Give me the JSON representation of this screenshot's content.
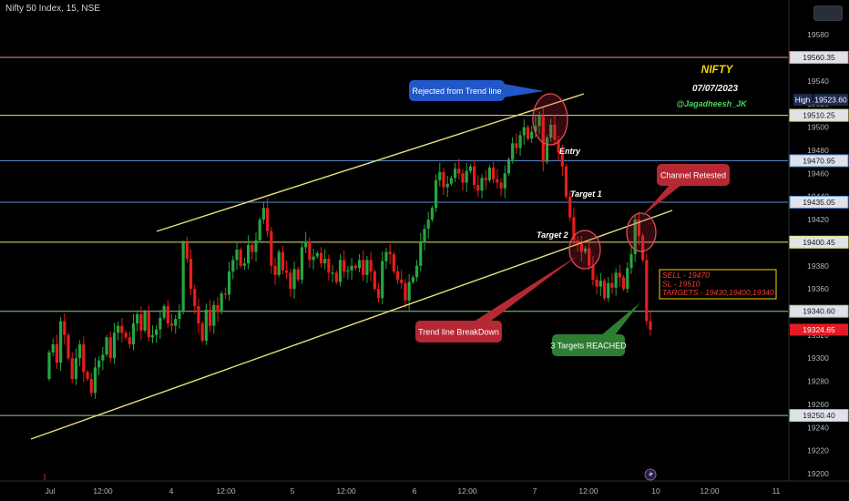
{
  "window": {
    "title": "Nifty 50 Index, 15, NSE"
  },
  "colors": {
    "background": "#000000",
    "bull": "#26a641",
    "bear": "#e81c1c",
    "trendline": "#e8e07a",
    "yellow_text": "#f5d60a",
    "green_text": "#4fd15b",
    "blue_line": "#5b8fd9",
    "red_line": "#f08a8a",
    "green_line": "#8fd08f",
    "callout_blue": "#2157c7",
    "callout_red": "#b52834",
    "callout_green": "#2e7d32"
  },
  "annotations": {
    "nifty": "NIFTY",
    "date": "07/07/2023",
    "author": "@Jagadheesh_JK",
    "entry": "Entry",
    "target1": "Target 1",
    "target2": "Target 2",
    "trade_box": [
      "SELL - 19470",
      "SL - 19510",
      "TARGETS - 19430,19400,19340"
    ]
  },
  "callouts": {
    "rejected": "Rejected from Trend line",
    "retested": "Channel Retested",
    "breakdown": "Trend line BreakDown",
    "reached": "3 Targets REACHED"
  },
  "chart_data": {
    "type": "candlestick",
    "title": "Nifty 50 Index, 15, NSE",
    "ylim": [
      19195,
      19585
    ],
    "y_ticks": [
      19200,
      19220,
      19240,
      19260,
      19280,
      19300,
      19320,
      19340,
      19360,
      19380,
      19400,
      19420,
      19440,
      19460,
      19480,
      19500,
      19520,
      19540,
      19560,
      19580
    ],
    "x_tick_labels": [
      "Jul",
      "12:00",
      "4",
      "12:00",
      "5",
      "12:00",
      "6",
      "12:00",
      "7",
      "12:00",
      "10",
      "12:00",
      "11"
    ],
    "horizontal_levels": [
      {
        "label": "19560.35",
        "value": 19560.35,
        "color": "#f08a8a"
      },
      {
        "label": "19510.25",
        "value": 19510.25,
        "color": "#e8e07a"
      },
      {
        "label": "19470.95",
        "value": 19470.95,
        "color": "#5b8fd9"
      },
      {
        "label": "19435.05",
        "value": 19435.05,
        "color": "#5b8fd9"
      },
      {
        "label": "19400.45",
        "value": 19400.45,
        "color": "#e8e07a"
      },
      {
        "label": "19340.60",
        "value": 19340.6,
        "color": "#8fd08f"
      },
      {
        "label": "19250.40",
        "value": 19250.4,
        "color": "#8fd08f"
      }
    ],
    "price_labels": [
      {
        "label": "19523.60",
        "tag": "High",
        "value": 19523.6
      },
      {
        "label": "19324.65",
        "value": 19324.65
      }
    ],
    "candles_close": [
      19305,
      19312,
      19296,
      19332,
      19320,
      19300,
      19282,
      19300,
      19312,
      19288,
      19282,
      19270,
      19292,
      19298,
      19303,
      19318,
      19300,
      19322,
      19328,
      19322,
      19318,
      19312,
      19330,
      19338,
      19324,
      19340,
      19318,
      19320,
      19325,
      19335,
      19345,
      19330,
      19328,
      19334,
      19340,
      19400,
      19386,
      19360,
      19345,
      19330,
      19315,
      19342,
      19328,
      19346,
      19340,
      19356,
      19355,
      19375,
      19385,
      19394,
      19380,
      19382,
      19398,
      19392,
      19402,
      19420,
      19430,
      19410,
      19380,
      19372,
      19392,
      19376,
      19374,
      19360,
      19377,
      19368,
      19396,
      19401,
      19385,
      19388,
      19391,
      19382,
      19386,
      19374,
      19374,
      19366,
      19385,
      19375,
      19376,
      19380,
      19378,
      19385,
      19372,
      19385,
      19375,
      19360,
      19352,
      19384,
      19392,
      19390,
      19375,
      19368,
      19365,
      19350,
      19366,
      19370,
      19380,
      19400,
      19412,
      19420,
      19430,
      19454,
      19461,
      19448,
      19451,
      19456,
      19464,
      19460,
      19452,
      19462,
      19466,
      19450,
      19445,
      19456,
      19454,
      19465,
      19455,
      19452,
      19447,
      19460,
      19472,
      19486,
      19482,
      19493,
      19500,
      19490,
      19496,
      19501,
      19510,
      19470,
      19491,
      19502,
      19489,
      19478,
      19466,
      19440,
      19422,
      19402,
      19399,
      19392,
      19395,
      19380,
      19368,
      19362,
      19367,
      19352,
      19365,
      19361,
      19374,
      19370,
      19360,
      19378,
      19390,
      19420,
      19406,
      19385,
      19332,
      19324.65
    ]
  }
}
